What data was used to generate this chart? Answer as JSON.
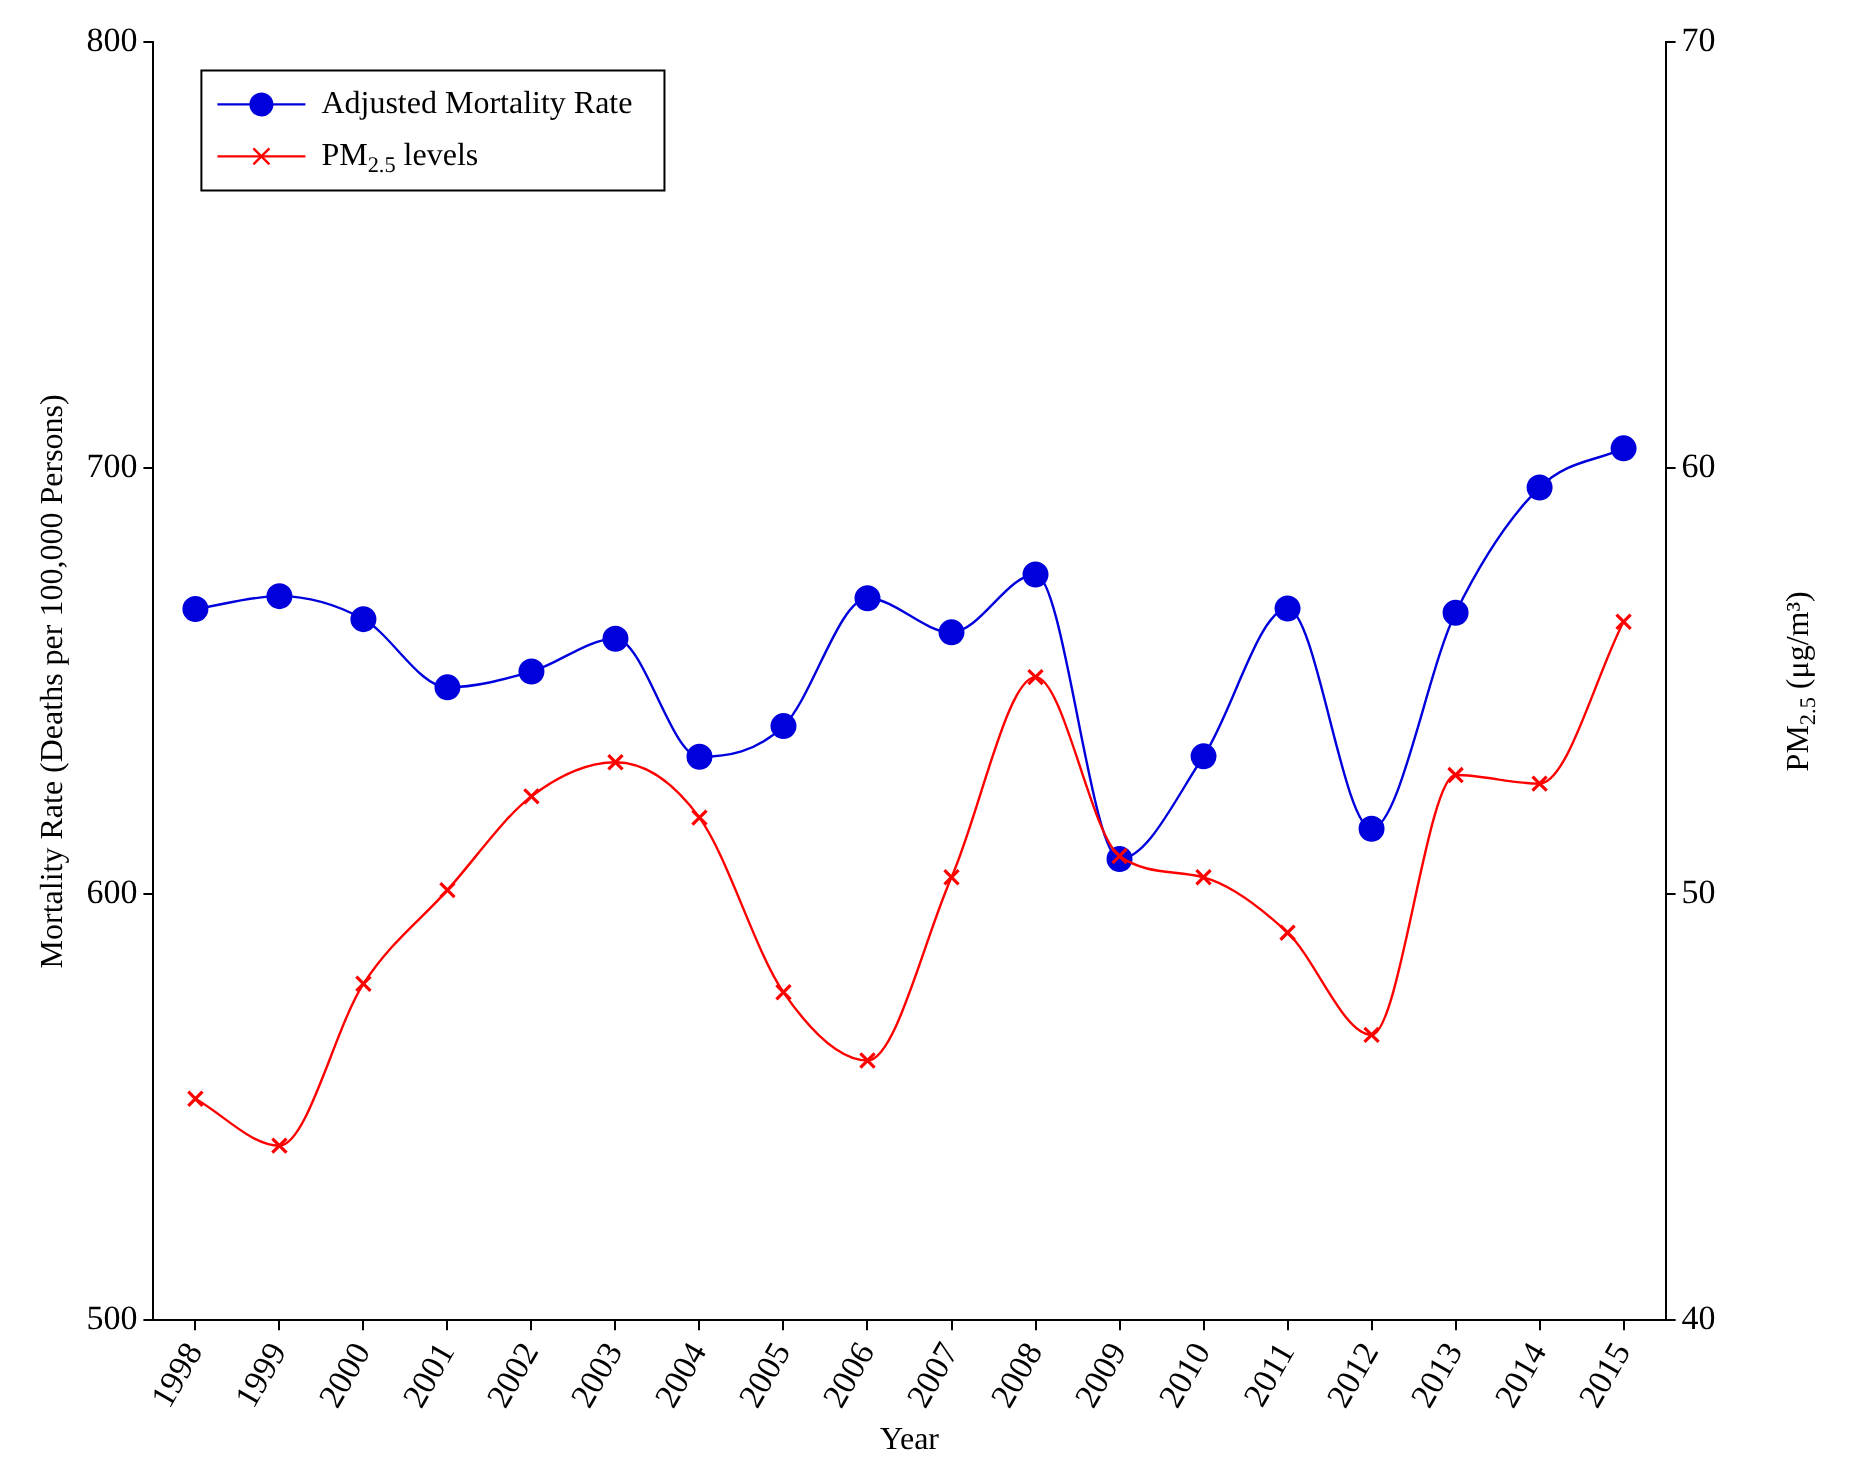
{
  "chart_data": {
    "type": "line",
    "xlabel": "Year",
    "ylabel": "Mortality Rate (Deaths per 100,000 Persons)",
    "y2label": "PM$_{2.5}$ (μg/m³)",
    "categories": [
      "1998",
      "1999",
      "2000",
      "2001",
      "2002",
      "2003",
      "2004",
      "2005",
      "2006",
      "2007",
      "2008",
      "2009",
      "2010",
      "2011",
      "2012",
      "2013",
      "2014",
      "2015"
    ],
    "series": [
      {
        "name": "Adjusted Mortality Rate",
        "color": "#0000dd",
        "marker": "circle",
        "values": [
          667,
          670,
          664.6,
          648.6,
          652.3,
          660,
          632.3,
          639.5,
          669.5,
          661.5,
          675.1,
          608.3,
          632.4,
          667.1,
          615.4,
          666.1,
          695.5,
          704.7
        ]
      },
      {
        "name": "PM$_{2.5}$ levels",
        "color": "#ff0000",
        "marker": "cross",
        "axis": "y2",
        "values": [
          45.2,
          44.1,
          47.9,
          50.1,
          52.3,
          53.1,
          51.8,
          47.7,
          46.1,
          50.4,
          55.1,
          50.9,
          50.4,
          49.1,
          46.7,
          52.8,
          52.6,
          56.4
        ]
      }
    ],
    "ylim": [
      500,
      800
    ],
    "yticks": [
      500,
      600,
      700,
      800
    ],
    "y2lim": [
      40,
      70
    ],
    "y2ticks": [
      40,
      50,
      60,
      70
    ],
    "grid": false,
    "legend": "top left"
  }
}
